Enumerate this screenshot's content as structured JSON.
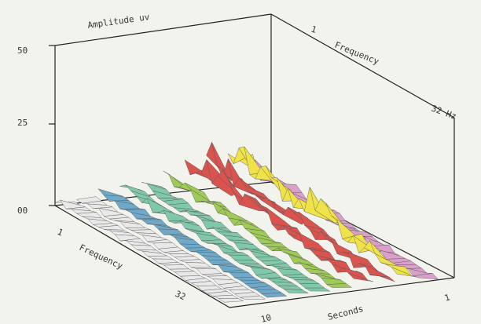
{
  "chart_data": {
    "type": "surface-3d",
    "z_axis": {
      "label": "Amplitude uv",
      "ticks": [
        "50",
        "25",
        "00"
      ],
      "range": [
        0,
        50
      ]
    },
    "frequency_axis_front": {
      "label": "Frequency",
      "start": "1",
      "end": "32"
    },
    "frequency_axis_back": {
      "label": "Frequency",
      "start": "1",
      "end": "32 Hz"
    },
    "time_axis": {
      "label": "Seconds",
      "start": "1",
      "end": "10"
    },
    "frequency_bins": 32,
    "time_slices": 10,
    "band_colors": [
      "#e9e9e9",
      "#6fa9c9",
      "#7fc9a9",
      "#9ecb55",
      "#d9534f",
      "#f0e34a",
      "#d9a0c9"
    ],
    "band_peak_amplitude": [
      3,
      4,
      6,
      9,
      17,
      24,
      10
    ]
  }
}
